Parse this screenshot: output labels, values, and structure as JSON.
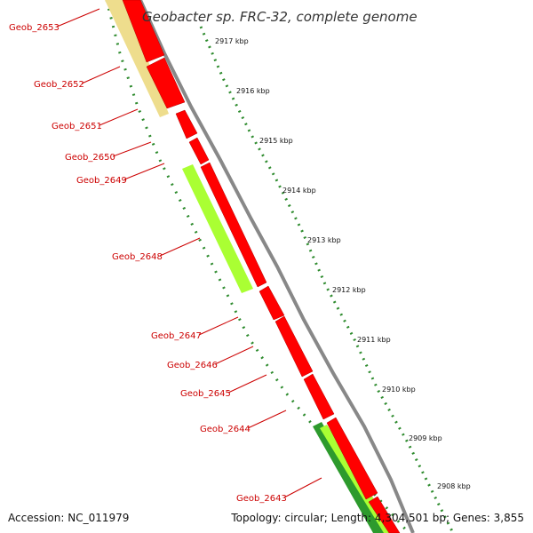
{
  "title": "Geobacter sp. FRC-32, complete genome",
  "footer": {
    "accession": "Accession: NC_011979",
    "summary": "Topology: circular; Length: 4,304,501 bp; Genes: 3,855"
  },
  "colors": {
    "cds": "#ff0000",
    "gene_tan": "#eedd8d",
    "gene_lime": "#aaff33",
    "gene_green": "#2d9a2d",
    "backbone": "#888888",
    "gc_dots": "#2e8b2e",
    "label": "#cc0000"
  },
  "kbp_ticks": [
    "2917 kbp",
    "2916 kbp",
    "2915 kbp",
    "2914 kbp",
    "2913 kbp",
    "2912 kbp",
    "2911 kbp",
    "2910 kbp",
    "2909 kbp",
    "2908 kbp"
  ],
  "gene_labels": [
    "Geob_2653",
    "Geob_2652",
    "Geob_2651",
    "Geob_2650",
    "Geob_2649",
    "Geob_2648",
    "Geob_2647",
    "Geob_2646",
    "Geob_2645",
    "Geob_2644",
    "Geob_2643"
  ]
}
